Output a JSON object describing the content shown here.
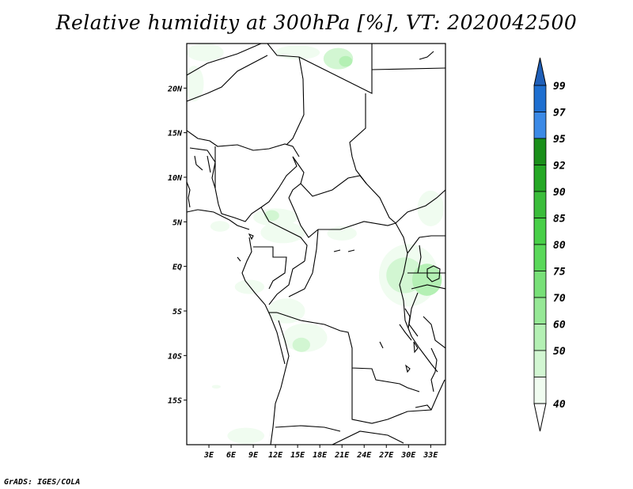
{
  "title": "Relative humidity at 300hPa [%], VT: 2020042500",
  "credit": "GrADS: IGES/COLA",
  "map": {
    "lon_range": [
      0,
      35
    ],
    "lat_range": [
      -20,
      25
    ],
    "lat_ticks": [
      {
        "value": 20,
        "label": "20N"
      },
      {
        "value": 15,
        "label": "15N"
      },
      {
        "value": 10,
        "label": "10N"
      },
      {
        "value": 5,
        "label": "5N"
      },
      {
        "value": 0,
        "label": "EQ"
      },
      {
        "value": -5,
        "label": "5S"
      },
      {
        "value": -10,
        "label": "10S"
      },
      {
        "value": -15,
        "label": "15S"
      }
    ],
    "lon_ticks": [
      {
        "value": 3,
        "label": "3E"
      },
      {
        "value": 6,
        "label": "6E"
      },
      {
        "value": 9,
        "label": "9E"
      },
      {
        "value": 12,
        "label": "12E"
      },
      {
        "value": 15,
        "label": "15E"
      },
      {
        "value": 18,
        "label": "18E"
      },
      {
        "value": 21,
        "label": "21E"
      },
      {
        "value": 24,
        "label": "24E"
      },
      {
        "value": 27,
        "label": "27E"
      },
      {
        "value": 30,
        "label": "30E"
      },
      {
        "value": 33,
        "label": "33E"
      }
    ],
    "humidity_patches": [
      {
        "lon": 2.5,
        "lat": 24.0,
        "rx": 2.5,
        "ry": 1.0,
        "level": 40
      },
      {
        "lon": 20.5,
        "lat": 23.3,
        "rx": 2.0,
        "ry": 1.2,
        "level": 50
      },
      {
        "lon": 21.5,
        "lat": 23.0,
        "rx": 0.9,
        "ry": 0.6,
        "level": 60
      },
      {
        "lon": 15.0,
        "lat": 24.0,
        "rx": 3.0,
        "ry": 0.8,
        "level": 40
      },
      {
        "lon": 1.0,
        "lat": 20.5,
        "rx": 1.3,
        "ry": 2.0,
        "level": 40
      },
      {
        "lon": 12.0,
        "lat": 5.5,
        "rx": 3.0,
        "ry": 1.0,
        "level": 40
      },
      {
        "lon": 11.5,
        "lat": 5.7,
        "rx": 1.0,
        "ry": 0.6,
        "level": 50
      },
      {
        "lon": 13.0,
        "lat": 3.8,
        "rx": 3.0,
        "ry": 1.2,
        "level": 40
      },
      {
        "lon": 4.5,
        "lat": 4.5,
        "rx": 1.3,
        "ry": 0.6,
        "level": 40
      },
      {
        "lon": 21.0,
        "lat": 3.7,
        "rx": 2.0,
        "ry": 0.8,
        "level": 40
      },
      {
        "lon": 33.0,
        "lat": 6.5,
        "rx": 1.8,
        "ry": 2.0,
        "level": 40
      },
      {
        "lon": 30.0,
        "lat": -1.0,
        "rx": 4.0,
        "ry": 3.5,
        "level": 40
      },
      {
        "lon": 29.5,
        "lat": -1.0,
        "rx": 2.5,
        "ry": 2.0,
        "level": 50
      },
      {
        "lon": 32.5,
        "lat": -1.5,
        "rx": 2.0,
        "ry": 1.8,
        "level": 60
      },
      {
        "lon": 8.5,
        "lat": -2.3,
        "rx": 2.0,
        "ry": 0.8,
        "level": 40
      },
      {
        "lon": 13.5,
        "lat": -5.0,
        "rx": 2.5,
        "ry": 1.4,
        "level": 40
      },
      {
        "lon": 16.0,
        "lat": -8.0,
        "rx": 3.0,
        "ry": 1.6,
        "level": 40
      },
      {
        "lon": 15.5,
        "lat": -8.8,
        "rx": 1.2,
        "ry": 0.8,
        "level": 50
      },
      {
        "lon": 8.0,
        "lat": -19.0,
        "rx": 2.5,
        "ry": 0.9,
        "level": 40
      },
      {
        "lon": 4.0,
        "lat": -13.5,
        "rx": 0.6,
        "ry": 0.2,
        "level": 40
      }
    ]
  },
  "colorbar": {
    "levels": [
      "99",
      "97",
      "95",
      "92",
      "90",
      "85",
      "80",
      "75",
      "70",
      "60",
      "50",
      "40"
    ],
    "colors": [
      "#1e6fd0",
      "#3c8ae6",
      "#1a8f1a",
      "#25a825",
      "#3bbd3b",
      "#48cf48",
      "#5ad85a",
      "#78e078",
      "#96e896",
      "#b4f0b4",
      "#d2f6d2",
      "#f0fcf0"
    ],
    "top_arrow_color": "#1f5fb8",
    "bottom_arrow_color": "#ffffff"
  },
  "colors": {
    "land_border": "#000000",
    "background": "#ffffff"
  }
}
